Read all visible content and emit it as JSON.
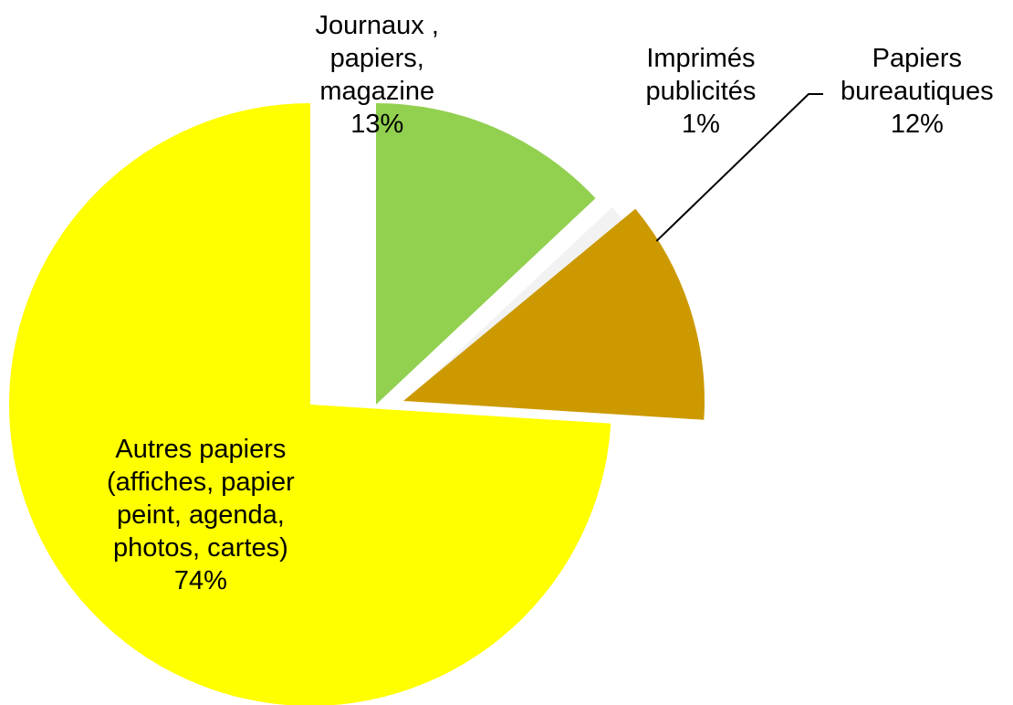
{
  "chart_data": {
    "type": "pie",
    "title": "",
    "categories": [
      "Journaux , papiers, magazine",
      "Imprimés publicités",
      "Papiers bureautiques",
      "Autres papiers (affiches, papier peint, agenda, photos, cartes)"
    ],
    "values": [
      13,
      1,
      12,
      74
    ],
    "data_labels": [
      "Journaux ,\npapiers,\nmagazine\n13%",
      "Imprimés\npublicités\n1%",
      "Papiers\nbureautiques\n12%",
      "Autres papiers\n(affiches, papier\npeint, agenda,\nphotos, cartes)\n74%"
    ],
    "colors": [
      "#92d050",
      "#f2f2f2",
      "#cc9900",
      "#ffff00"
    ],
    "legend": "none",
    "exploded": true
  }
}
